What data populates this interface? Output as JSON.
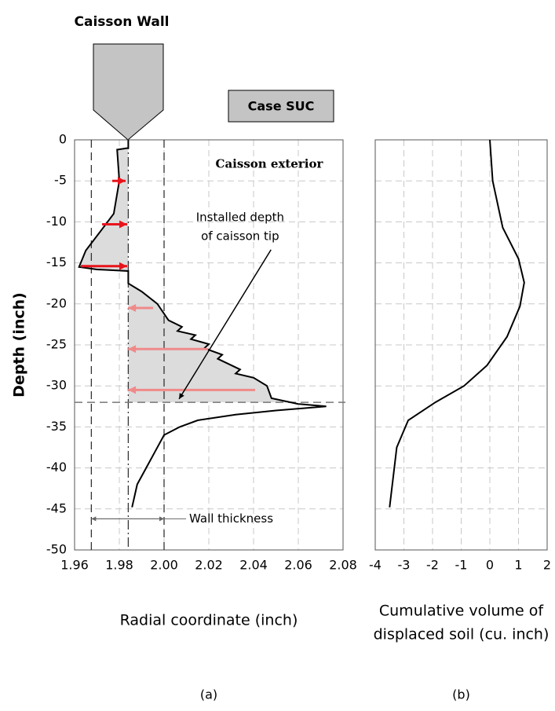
{
  "chart_data": [
    {
      "type": "line",
      "figure_title": "Caisson Wall",
      "case_label": "Case SUC",
      "panel_label": "(a)",
      "xlabel": "Radial coordinate (inch)",
      "ylabel": "Depth (inch)",
      "xlim": [
        1.96,
        2.08
      ],
      "xticks": [
        1.96,
        1.98,
        {
          "value": 2.0,
          "label": "2.00"
        },
        2.02,
        2.04,
        2.06,
        2.08
      ],
      "ylim": [
        -50,
        0
      ],
      "yticks": [
        0,
        -5,
        -10,
        -15,
        -20,
        -25,
        -30,
        -35,
        -40,
        -45,
        -50
      ],
      "grid": true,
      "shade_color": "#dcdcdc",
      "series": [
        {
          "color": "#000000",
          "x": [
            1.984,
            1.984,
            1.979,
            1.98,
            1.9775,
            1.972,
            1.965,
            1.962,
            1.97,
            1.984,
            1.984,
            1.99,
            1.997,
            2.002,
            2.008,
            2.006,
            2.014,
            2.012,
            2.02,
            2.018,
            2.026,
            2.024,
            2.034,
            2.032,
            2.04,
            2.046,
            2.048,
            2.06,
            2.0725,
            2.05,
            2.032,
            2.015,
            2.007,
            2.0,
            1.996,
            1.992,
            1.988,
            1.9857
          ],
          "values": [
            0,
            -1,
            -1.2,
            -5,
            -9,
            -11,
            -13.5,
            -15.5,
            -15.8,
            -16,
            -17.5,
            -18.5,
            -20,
            -22,
            -22.8,
            -23.3,
            -23.8,
            -24.3,
            -24.9,
            -25.4,
            -26.2,
            -26.7,
            -28,
            -28.5,
            -29,
            -30,
            -31.5,
            -32.2,
            -32.5,
            -33,
            -33.5,
            -34.2,
            -35,
            -36,
            -38,
            -40,
            -42,
            -44.8
          ]
        }
      ],
      "reference_lines": {
        "vertical": [
          {
            "value": 1.9675,
            "style": "dash"
          },
          {
            "value": 1.984,
            "style": "dashdot"
          },
          {
            "value": 2.0,
            "style": "dash"
          }
        ],
        "horizontal": [
          {
            "value": -32,
            "style": "dash"
          }
        ]
      },
      "arrows": [
        {
          "y": -5,
          "x_from": 1.9768,
          "x_to": 1.9828,
          "color": "#e8141b"
        },
        {
          "y": -10.3,
          "x_from": 1.9723,
          "x_to": 1.9835,
          "color": "#e8141b"
        },
        {
          "y": -15.4,
          "x_from": 1.9628,
          "x_to": 1.9835,
          "color": "#e8141b"
        },
        {
          "y": -20.5,
          "x_from": 1.9951,
          "x_to": 1.9839,
          "color": "#f08a8a"
        },
        {
          "y": -25.5,
          "x_from": 2.0197,
          "x_to": 1.9839,
          "color": "#f08a8a"
        },
        {
          "y": -30.5,
          "x_from": 2.0407,
          "x_to": 1.9839,
          "color": "#f08a8a"
        }
      ],
      "annotations": {
        "exterior": {
          "text": "Caisson exterior",
          "x": 2.047,
          "y": -3
        },
        "tip": {
          "lines": [
            "Installed depth",
            "of caisson tip"
          ],
          "x": 2.034,
          "y": -9.5,
          "pointer": {
            "x_from": 2.0478,
            "y_from": -13.4,
            "x_to": 2.0067,
            "y_to": -31.6
          }
        },
        "wall": {
          "text": "Wall thickness",
          "y": -46.2,
          "x_from": 1.9675,
          "x_to": 2.0
        }
      }
    },
    {
      "type": "line",
      "panel_label": "(b)",
      "xlabel": [
        "Cumulative volume of",
        "displaced soil (cu. inch)"
      ],
      "xlim": [
        -4,
        2
      ],
      "xticks": [
        -4,
        -3,
        -2,
        -1,
        0,
        1,
        2
      ],
      "ylim": [
        -50,
        0
      ],
      "yticks": [
        0,
        -5,
        -10,
        -15,
        -20,
        -25,
        -30,
        -35,
        -40,
        -45,
        -50
      ],
      "grid": true,
      "series": [
        {
          "color": "#000000",
          "x": [
            0,
            0.1,
            0.45,
            1.0,
            1.2,
            1.05,
            0.6,
            -0.1,
            -0.9,
            -1.9,
            -2.85,
            -3.25,
            -3.5
          ],
          "values": [
            0,
            -5,
            -10.7,
            -14.5,
            -17.4,
            -20.3,
            -24,
            -27.5,
            -30,
            -32,
            -34.2,
            -37.5,
            -44.8
          ]
        }
      ]
    }
  ]
}
